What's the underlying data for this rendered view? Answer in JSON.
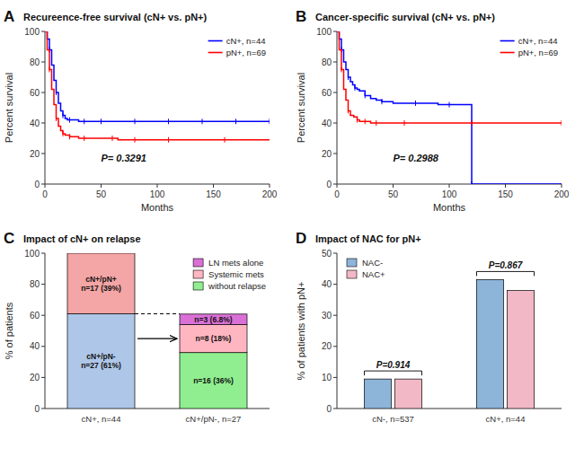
{
  "chart_data": [
    {
      "type": "line",
      "line_style": "step",
      "panel_label": "A",
      "title": "Recureence-free survival (cN+ vs. pN+)",
      "x_label": "Months",
      "y_label": "Percent survival",
      "annotations": [
        "P= 0.3291"
      ],
      "xlim": [
        0,
        200
      ],
      "ylim": [
        0,
        100
      ],
      "xticks": [
        0,
        50,
        100,
        150,
        200
      ],
      "yticks": [
        0,
        20,
        40,
        60,
        80,
        100
      ],
      "grid": false,
      "legend": "upper right",
      "series": [
        {
          "name": "cN+, n=44",
          "color": "#0000FF",
          "marker": "tick",
          "x": [
            0,
            2,
            4,
            6,
            8,
            10,
            12,
            14,
            16,
            18,
            20,
            22,
            25,
            30,
            35,
            40,
            45,
            50,
            60,
            70,
            80,
            90,
            100,
            110,
            120,
            130,
            140,
            150,
            160,
            170,
            180,
            190,
            200
          ],
          "values": [
            100,
            95,
            88,
            78,
            68,
            60,
            53,
            48,
            45,
            43,
            42,
            42,
            42,
            41,
            41,
            41,
            41,
            41,
            41,
            41,
            41,
            41,
            41,
            41,
            41,
            41,
            41,
            41,
            41,
            41,
            41,
            41,
            41
          ]
        },
        {
          "name": "pN+, n=69",
          "color": "#FF0000",
          "marker": "tick",
          "x": [
            0,
            2,
            4,
            6,
            8,
            10,
            12,
            14,
            16,
            18,
            20,
            22,
            25,
            30,
            35,
            40,
            50,
            60,
            65,
            70,
            80,
            90,
            100,
            110,
            120,
            130,
            160,
            190,
            200
          ],
          "values": [
            100,
            88,
            75,
            62,
            52,
            43,
            38,
            35,
            33,
            32,
            32,
            31,
            31,
            30,
            30,
            30,
            30,
            30,
            29,
            29,
            29,
            29,
            29,
            29,
            29,
            29,
            29,
            29,
            29
          ]
        }
      ]
    },
    {
      "type": "line",
      "line_style": "step",
      "panel_label": "B",
      "title": "Cancer-specific survival (cN+ vs. pN+)",
      "x_label": "Months",
      "y_label": "Percent survival",
      "annotations": [
        "P= 0.2988"
      ],
      "xlim": [
        0,
        200
      ],
      "ylim": [
        0,
        100
      ],
      "xticks": [
        0,
        50,
        100,
        150,
        200
      ],
      "yticks": [
        0,
        20,
        40,
        60,
        80,
        100
      ],
      "grid": false,
      "legend": "upper right",
      "series": [
        {
          "name": "cN+, n=44",
          "color": "#0000FF",
          "marker": "tick",
          "x": [
            0,
            2,
            4,
            6,
            8,
            10,
            12,
            14,
            16,
            18,
            20,
            25,
            30,
            35,
            40,
            50,
            60,
            70,
            80,
            90,
            100,
            110,
            118,
            120,
            200
          ],
          "values": [
            100,
            95,
            88,
            80,
            75,
            70,
            67,
            65,
            63,
            62,
            61,
            58,
            56,
            55,
            54,
            53,
            53,
            53,
            53,
            52,
            52,
            52,
            52,
            0,
            0
          ]
        },
        {
          "name": "pN+, n=69",
          "color": "#FF0000",
          "marker": "tick",
          "x": [
            0,
            2,
            4,
            6,
            8,
            10,
            12,
            15,
            18,
            20,
            22,
            25,
            28,
            30,
            35,
            40,
            50,
            60,
            80,
            100,
            120,
            130,
            190,
            200
          ],
          "values": [
            100,
            88,
            75,
            62,
            55,
            48,
            45,
            44,
            42,
            41,
            41,
            41,
            41,
            40,
            40,
            40,
            40,
            40,
            40,
            40,
            40,
            40,
            40,
            40
          ]
        }
      ]
    },
    {
      "type": "bar",
      "stacked": true,
      "data_labels": true,
      "panel_label": "C",
      "title": "Impact of cN+ on relapse",
      "y_label": "% of patients",
      "categories": [
        "cN+, n=44",
        "cN+/pN-, n=27"
      ],
      "ylim": [
        0,
        100
      ],
      "yticks": [
        0,
        20,
        40,
        60,
        80,
        100
      ],
      "grid": false,
      "legend": "upper right",
      "series": [
        {
          "color": "#AEC6E8",
          "values": [
            61,
            null
          ],
          "value_labels": [
            "cN+/pN-\nn=27 (61%)",
            null
          ]
        },
        {
          "color": "#F4A5A5",
          "values": [
            39,
            null
          ],
          "value_labels": [
            "cN+/pN+\nn=17 (39%)",
            null
          ]
        },
        {
          "name": "without relapse",
          "color": "#90EE90",
          "values": [
            null,
            36
          ],
          "value_labels": [
            null,
            "n=16 (36%)"
          ]
        },
        {
          "name": "Systemic mets",
          "color": "#FFB6C1",
          "values": [
            null,
            18
          ],
          "value_labels": [
            null,
            "n=8 (18%)"
          ]
        },
        {
          "name": "LN mets alone",
          "color": "#DA70D6",
          "values": [
            null,
            6.8
          ],
          "value_labels": [
            null,
            "n=3 (6.8%)"
          ]
        }
      ]
    },
    {
      "type": "bar",
      "panel_label": "D",
      "title": "Impact of NAC for pN+",
      "y_label": "% of patients with pN+",
      "categories": [
        "cN-, n=537",
        "cN+, n=44"
      ],
      "annotations": [
        "P=0.914",
        "P=0.867"
      ],
      "ylim": [
        0,
        50
      ],
      "yticks": [
        0,
        10,
        20,
        30,
        40,
        50
      ],
      "grid": false,
      "legend": "upper left",
      "series": [
        {
          "name": "NAC-",
          "color": "#8DB4D9",
          "values": [
            9.5,
            41.5
          ]
        },
        {
          "name": "NAC+",
          "color": "#F2B8C6",
          "values": [
            9.5,
            38.0
          ]
        }
      ]
    }
  ]
}
